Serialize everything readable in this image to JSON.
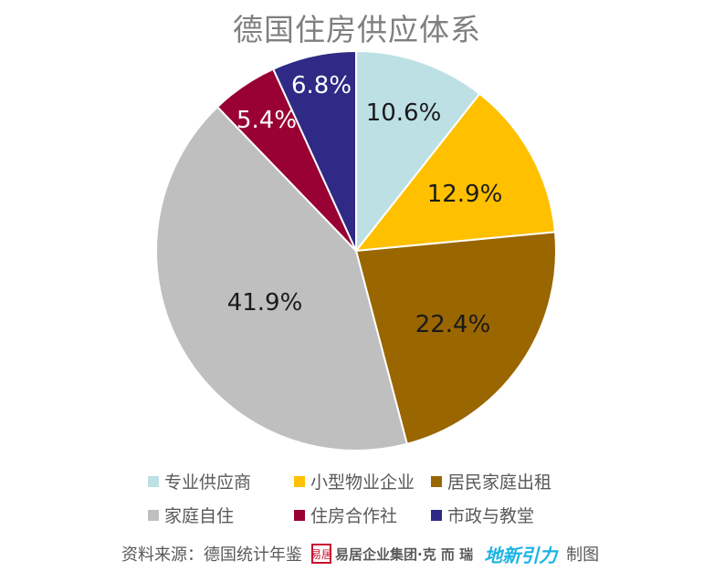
{
  "chart_data": {
    "type": "pie",
    "title": "德国住房供应体系",
    "start": "12 o'clock, clockwise",
    "slices": [
      {
        "label": "专业供应商",
        "value": 10.6,
        "value_label": "10.6%",
        "color": "#bde0e4",
        "text_color": "#1a1a1a"
      },
      {
        "label": "小型物业企业",
        "value": 12.9,
        "value_label": "12.9%",
        "color": "#ffc000",
        "text_color": "#1a1a1a"
      },
      {
        "label": "居民家庭出租",
        "value": 22.4,
        "value_label": "22.4%",
        "color": "#996600",
        "text_color": "#1a1a1a"
      },
      {
        "label": "家庭自住",
        "value": 41.9,
        "value_label": "41.9%",
        "color": "#bfbfbf",
        "text_color": "#1a1a1a"
      },
      {
        "label": "住房合作社",
        "value": 5.4,
        "value_label": "5.4%",
        "color": "#990033",
        "text_color": "#ffffff"
      },
      {
        "label": "市政与教堂",
        "value": 6.8,
        "value_label": "6.8%",
        "color": "#2e2a85",
        "text_color": "#ffffff"
      }
    ],
    "legend_position": "bottom"
  },
  "footer": {
    "source": "资料来源：德国统计年鉴",
    "logo1_seal": "易居",
    "logo1_text": "易居企业集团·克 而 瑞",
    "logo2_text": "地新引力",
    "made": "制图"
  }
}
